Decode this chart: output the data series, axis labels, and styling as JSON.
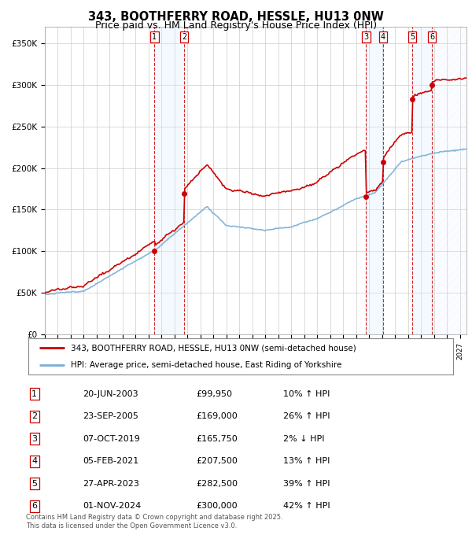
{
  "title": "343, BOOTHFERRY ROAD, HESSLE, HU13 0NW",
  "subtitle": "Price paid vs. HM Land Registry's House Price Index (HPI)",
  "legend_line1": "343, BOOTHFERRY ROAD, HESSLE, HU13 0NW (semi-detached house)",
  "legend_line2": "HPI: Average price, semi-detached house, East Riding of Yorkshire",
  "footer1": "Contains HM Land Registry data © Crown copyright and database right 2025.",
  "footer2": "This data is licensed under the Open Government Licence v3.0.",
  "sales": [
    {
      "num": 1,
      "date_f": 2003.46,
      "price": 99950,
      "hpi_pct": "10% ↑ HPI",
      "label": "20-JUN-2003",
      "price_label": "£99,950"
    },
    {
      "num": 2,
      "date_f": 2005.73,
      "price": 169000,
      "hpi_pct": "26% ↑ HPI",
      "label": "23-SEP-2005",
      "price_label": "£169,000"
    },
    {
      "num": 3,
      "date_f": 2019.77,
      "price": 165750,
      "hpi_pct": "2% ↓ HPI",
      "label": "07-OCT-2019",
      "price_label": "£165,750"
    },
    {
      "num": 4,
      "date_f": 2021.09,
      "price": 207500,
      "hpi_pct": "13% ↑ HPI",
      "label": "05-FEB-2021",
      "price_label": "£207,500"
    },
    {
      "num": 5,
      "date_f": 2023.32,
      "price": 282500,
      "hpi_pct": "39% ↑ HPI",
      "label": "27-APR-2023",
      "price_label": "£282,500"
    },
    {
      "num": 6,
      "date_f": 2024.84,
      "price": 300000,
      "hpi_pct": "42% ↑ HPI",
      "label": "01-NOV-2024",
      "price_label": "£300,000"
    }
  ],
  "ylim": [
    0,
    370000
  ],
  "yticks": [
    0,
    50000,
    100000,
    150000,
    200000,
    250000,
    300000,
    350000
  ],
  "ytick_labels": [
    "£0",
    "£50K",
    "£100K",
    "£150K",
    "£200K",
    "£250K",
    "£300K",
    "£350K"
  ],
  "hpi_color": "#7aadd4",
  "price_color": "#cc0000",
  "sale_marker_color": "#cc0000",
  "shade_color": "#ddeeff",
  "vline_color": "#cc0000",
  "grid_color": "#cccccc",
  "bg_color": "#ffffff",
  "title_fontsize": 10.5,
  "subtitle_fontsize": 9,
  "xmin": 1995,
  "xmax": 2027.5
}
